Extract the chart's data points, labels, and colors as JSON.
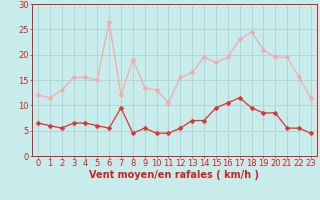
{
  "hours": [
    0,
    1,
    2,
    3,
    4,
    5,
    6,
    7,
    8,
    9,
    10,
    11,
    12,
    13,
    14,
    15,
    16,
    17,
    18,
    19,
    20,
    21,
    22,
    23
  ],
  "wind_avg": [
    6.5,
    6.0,
    5.5,
    6.5,
    6.5,
    6.0,
    5.5,
    9.5,
    4.5,
    5.5,
    4.5,
    4.5,
    5.5,
    7.0,
    7.0,
    9.5,
    10.5,
    11.5,
    9.5,
    8.5,
    8.5,
    5.5,
    5.5,
    4.5
  ],
  "wind_gust": [
    12.0,
    11.5,
    13.0,
    15.5,
    15.5,
    15.0,
    26.5,
    12.0,
    19.0,
    13.5,
    13.0,
    10.5,
    15.5,
    16.5,
    19.5,
    18.5,
    19.5,
    23.0,
    24.5,
    21.0,
    19.5,
    19.5,
    15.5,
    11.5
  ],
  "avg_color": "#dd3333",
  "gust_color": "#f4aaaa",
  "bg_color": "#c8ecec",
  "grid_color": "#aad4d4",
  "axis_color": "#cc2222",
  "ylim": [
    0,
    30
  ],
  "yticks": [
    0,
    5,
    10,
    15,
    20,
    25,
    30
  ],
  "xlabel": "Vent moyen/en rafales ( km/h )",
  "xlabel_fontsize": 7,
  "tick_fontsize": 6,
  "marker_size": 2.5,
  "linewidth": 0.9
}
